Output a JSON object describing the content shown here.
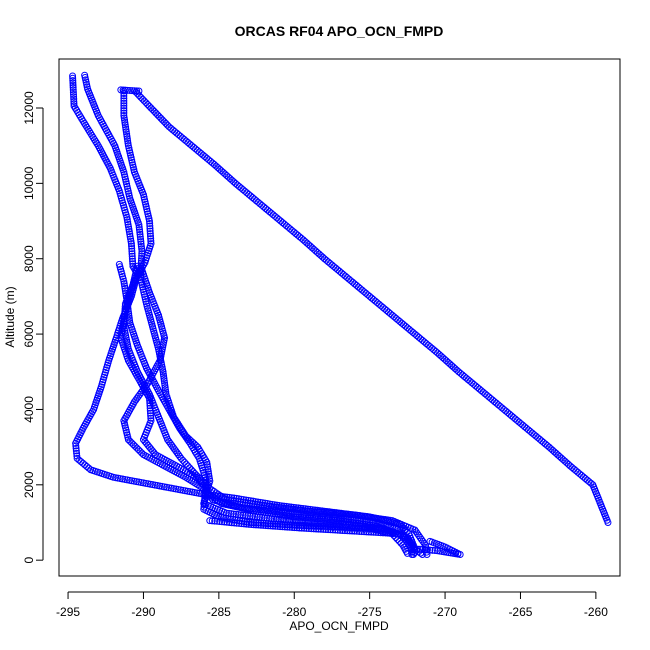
{
  "chart_data": {
    "type": "scatter",
    "title": "ORCAS RF04 APO_OCN_FMPD",
    "xlabel": "APO_OCN_FMPD",
    "ylabel": "Altitude (m)",
    "xlim": [
      -295.6,
      -258.4
    ],
    "ylim": [
      -420,
      13300
    ],
    "xticks": [
      -295,
      -290,
      -285,
      -280,
      -275,
      -270,
      -265,
      -260
    ],
    "yticks": [
      0,
      2000,
      4000,
      6000,
      8000,
      10000,
      12000
    ],
    "grid": false,
    "marker": "open-circle",
    "color": "#0000ff",
    "series": [
      {
        "points": [
          [
            -294.7,
            12850
          ],
          [
            -294.6,
            12050
          ],
          [
            -294.0,
            11650
          ],
          [
            -293.0,
            11000
          ],
          [
            -292.2,
            10400
          ],
          [
            -291.6,
            9800
          ],
          [
            -291.1,
            9100
          ],
          [
            -290.8,
            8400
          ],
          [
            -290.7,
            7800
          ],
          [
            -290.4,
            7600
          ],
          [
            -290.8,
            7000
          ],
          [
            -291.4,
            6400
          ],
          [
            -291.8,
            5900
          ],
          [
            -292.3,
            5300
          ],
          [
            -292.8,
            4600
          ],
          [
            -293.3,
            4000
          ],
          [
            -294.0,
            3500
          ],
          [
            -294.5,
            3100
          ],
          [
            -294.4,
            2700
          ],
          [
            -293.5,
            2400
          ],
          [
            -292.0,
            2200
          ],
          [
            -290.0,
            2050
          ],
          [
            -288.0,
            1900
          ],
          [
            -286.0,
            1750
          ],
          [
            -284.0,
            1650
          ],
          [
            -281.0,
            1450
          ],
          [
            -278.0,
            1300
          ],
          [
            -275.0,
            1150
          ],
          [
            -273.0,
            950
          ],
          [
            -272.4,
            700
          ],
          [
            -272.1,
            400
          ],
          [
            -272.0,
            200
          ]
        ]
      },
      {
        "points": [
          [
            -293.9,
            12870
          ],
          [
            -293.7,
            12500
          ],
          [
            -293.0,
            11800
          ],
          [
            -291.9,
            11000
          ],
          [
            -291.3,
            10300
          ],
          [
            -290.9,
            9600
          ],
          [
            -290.3,
            8900
          ],
          [
            -290.1,
            8200
          ],
          [
            -290.2,
            7500
          ],
          [
            -289.8,
            6800
          ],
          [
            -289.4,
            6200
          ],
          [
            -289.0,
            5600
          ],
          [
            -288.7,
            5000
          ],
          [
            -288.5,
            4400
          ],
          [
            -288.0,
            3800
          ],
          [
            -287.2,
            3300
          ],
          [
            -286.4,
            3000
          ],
          [
            -285.8,
            2600
          ],
          [
            -285.6,
            2100
          ],
          [
            -285.9,
            1700
          ],
          [
            -286.0,
            1350
          ],
          [
            -285.0,
            1150
          ],
          [
            -283.0,
            1000
          ],
          [
            -280.0,
            930
          ],
          [
            -277.0,
            880
          ],
          [
            -274.0,
            820
          ],
          [
            -272.5,
            600
          ],
          [
            -272.0,
            300
          ],
          [
            -271.5,
            150
          ]
        ]
      },
      {
        "points": [
          [
            -291.3,
            12450
          ],
          [
            -291.3,
            11800
          ],
          [
            -291.0,
            11000
          ],
          [
            -290.6,
            10300
          ],
          [
            -290.0,
            9700
          ],
          [
            -289.6,
            9000
          ],
          [
            -289.5,
            8400
          ],
          [
            -289.9,
            7900
          ],
          [
            -290.6,
            7400
          ],
          [
            -291.2,
            6800
          ],
          [
            -291.3,
            6200
          ],
          [
            -291.0,
            5600
          ],
          [
            -290.4,
            5000
          ],
          [
            -289.6,
            4400
          ],
          [
            -289.0,
            3800
          ],
          [
            -288.4,
            3200
          ],
          [
            -287.5,
            2700
          ],
          [
            -286.6,
            2300
          ],
          [
            -285.6,
            1900
          ],
          [
            -284.5,
            1600
          ],
          [
            -282.0,
            1450
          ],
          [
            -279.0,
            1300
          ],
          [
            -276.0,
            1200
          ],
          [
            -273.5,
            1050
          ],
          [
            -272.0,
            800
          ],
          [
            -271.3,
            400
          ],
          [
            -271.2,
            150
          ]
        ]
      },
      {
        "points": [
          [
            -291.6,
            7850
          ],
          [
            -291.3,
            7400
          ],
          [
            -291.1,
            6900
          ],
          [
            -290.9,
            6300
          ],
          [
            -290.4,
            5700
          ],
          [
            -289.8,
            5100
          ],
          [
            -289.0,
            4500
          ],
          [
            -288.3,
            4000
          ],
          [
            -287.6,
            3500
          ],
          [
            -286.9,
            3100
          ],
          [
            -286.3,
            2700
          ],
          [
            -285.9,
            2200
          ],
          [
            -285.8,
            1800
          ],
          [
            -284.8,
            1500
          ],
          [
            -282.5,
            1300
          ],
          [
            -280.0,
            1150
          ],
          [
            -277.0,
            1050
          ],
          [
            -274.5,
            900
          ],
          [
            -272.8,
            650
          ],
          [
            -272.2,
            300
          ],
          [
            -272.1,
            150
          ]
        ]
      },
      {
        "points": [
          [
            -290.4,
            7800
          ],
          [
            -290.7,
            7300
          ],
          [
            -291.2,
            6600
          ],
          [
            -291.5,
            5900
          ],
          [
            -291.0,
            5300
          ],
          [
            -290.3,
            4800
          ],
          [
            -289.6,
            4300
          ],
          [
            -289.5,
            3700
          ],
          [
            -290.0,
            3200
          ],
          [
            -289.2,
            2800
          ],
          [
            -287.8,
            2500
          ],
          [
            -286.5,
            2200
          ],
          [
            -285.8,
            1900
          ],
          [
            -286.0,
            1500
          ],
          [
            -284.5,
            1250
          ],
          [
            -281.5,
            1100
          ],
          [
            -278.5,
            1000
          ],
          [
            -275.5,
            900
          ],
          [
            -273.5,
            700
          ],
          [
            -272.8,
            400
          ],
          [
            -272.5,
            180
          ]
        ]
      },
      {
        "points": [
          [
            -290.1,
            7700
          ],
          [
            -289.6,
            7100
          ],
          [
            -289.0,
            6500
          ],
          [
            -288.6,
            5900
          ],
          [
            -288.9,
            5300
          ],
          [
            -289.7,
            4700
          ],
          [
            -290.6,
            4200
          ],
          [
            -291.3,
            3700
          ],
          [
            -291.0,
            3200
          ],
          [
            -290.0,
            2800
          ],
          [
            -288.6,
            2500
          ],
          [
            -287.2,
            2200
          ],
          [
            -286.0,
            1900
          ],
          [
            -285.4,
            1600
          ],
          [
            -283.5,
            1400
          ],
          [
            -280.5,
            1250
          ],
          [
            -277.5,
            1150
          ],
          [
            -274.5,
            1000
          ],
          [
            -273.0,
            800
          ],
          [
            -272.3,
            450
          ],
          [
            -272.2,
            150
          ]
        ]
      },
      {
        "points": [
          [
            -290.5,
            12420
          ],
          [
            -289.5,
            12000
          ],
          [
            -288.3,
            11500
          ],
          [
            -286.8,
            11000
          ],
          [
            -285.3,
            10500
          ],
          [
            -283.9,
            10000
          ],
          [
            -282.4,
            9500
          ],
          [
            -280.9,
            9000
          ],
          [
            -279.4,
            8500
          ],
          [
            -278.0,
            8000
          ],
          [
            -276.5,
            7500
          ],
          [
            -275.0,
            7000
          ],
          [
            -273.5,
            6500
          ],
          [
            -272.0,
            6000
          ],
          [
            -270.5,
            5500
          ],
          [
            -269.1,
            5000
          ],
          [
            -267.6,
            4500
          ],
          [
            -266.1,
            4000
          ],
          [
            -264.6,
            3500
          ],
          [
            -263.1,
            3000
          ],
          [
            -261.7,
            2500
          ],
          [
            -260.2,
            2000
          ],
          [
            -259.2,
            1000
          ]
        ]
      },
      {
        "points": [
          [
            -291.5,
            12480
          ],
          [
            -290.3,
            12450
          ]
        ]
      },
      {
        "points": [
          [
            -272.0,
            300
          ],
          [
            -270.5,
            250
          ],
          [
            -269.0,
            150
          ],
          [
            -270.0,
            350
          ],
          [
            -271.0,
            500
          ]
        ]
      },
      {
        "points": [
          [
            -285.6,
            1050
          ],
          [
            -283.0,
            950
          ],
          [
            -279.5,
            850
          ],
          [
            -276.0,
            770
          ],
          [
            -273.0,
            700
          ]
        ]
      }
    ]
  }
}
